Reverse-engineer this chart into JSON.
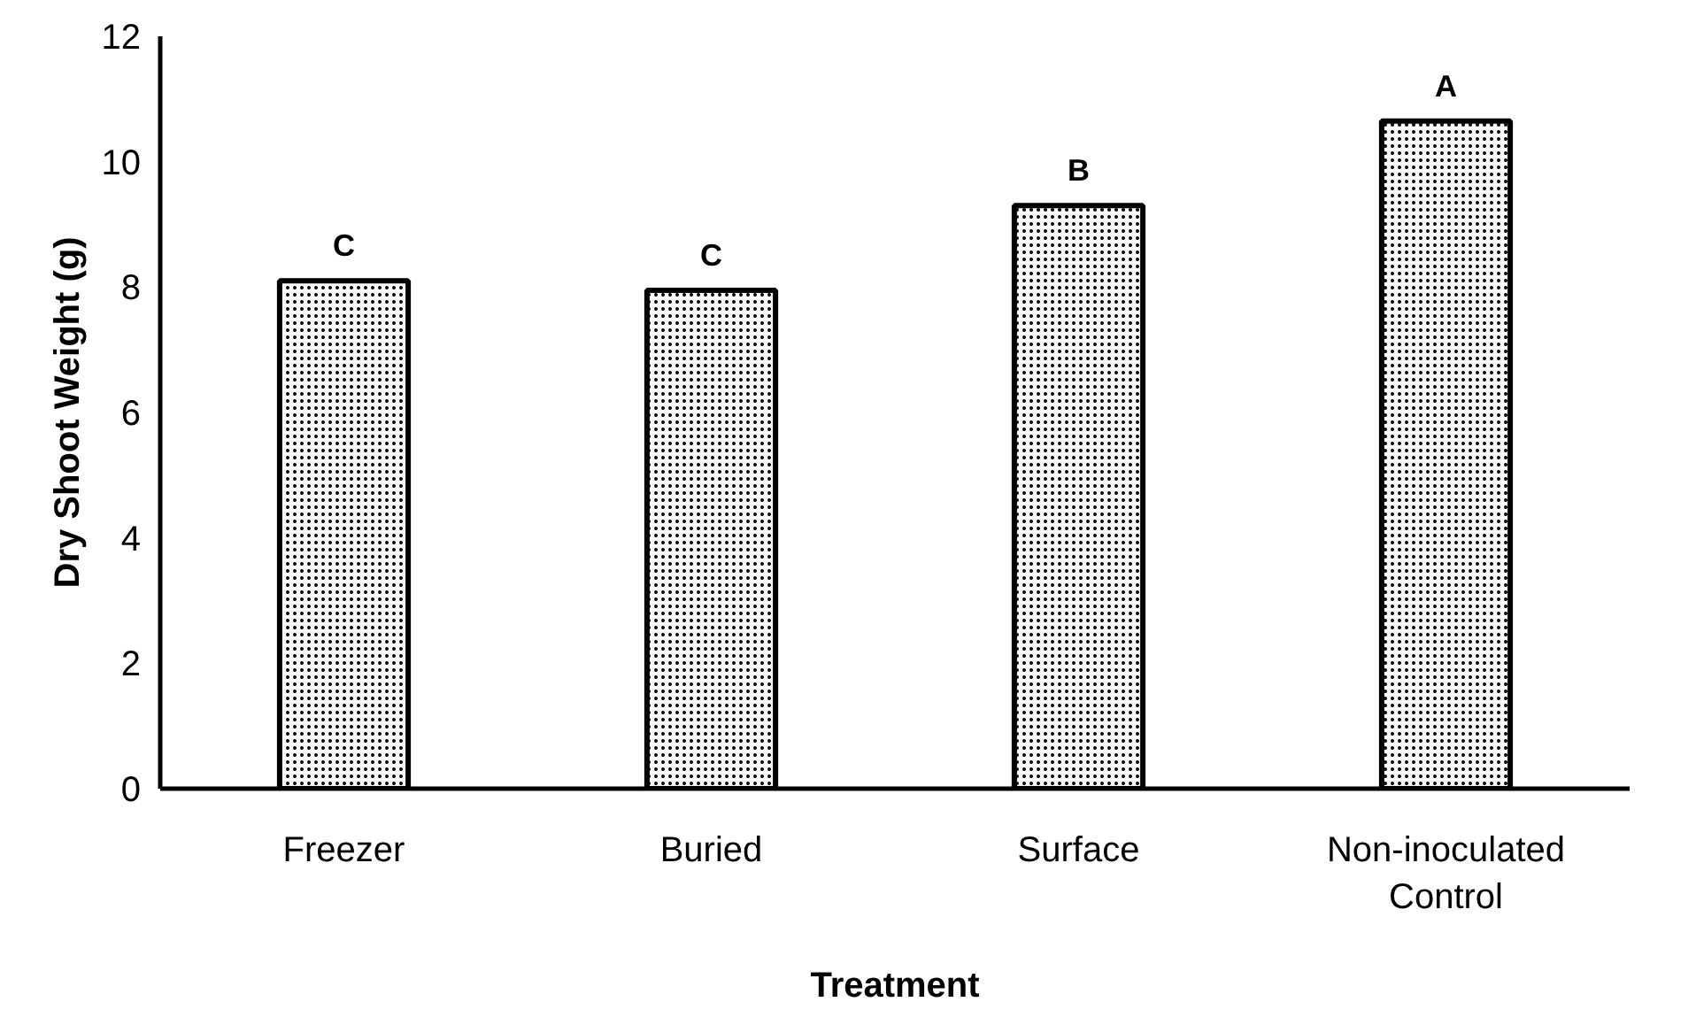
{
  "chart_data": {
    "type": "bar",
    "xlabel": "Treatment",
    "ylabel": "Dry Shoot Weight (g)",
    "categories": [
      "Freezer",
      "Buried",
      "Surface",
      "Non-inoculated\nControl"
    ],
    "values": [
      8.1,
      7.95,
      9.3,
      10.65
    ],
    "color": "#000000",
    "ylim": [
      0,
      12
    ],
    "yticks": [
      0,
      2,
      4,
      6,
      8,
      10,
      12
    ],
    "grid": false,
    "annotations": [
      {
        "text": "C",
        "x": "Freezer",
        "y": 8.1
      },
      {
        "text": "C",
        "x": "Buried",
        "y": 7.95
      },
      {
        "text": "B",
        "x": "Surface",
        "y": 9.3
      },
      {
        "text": "A",
        "x": "Non-inoculated\nControl",
        "y": 10.65
      }
    ]
  }
}
